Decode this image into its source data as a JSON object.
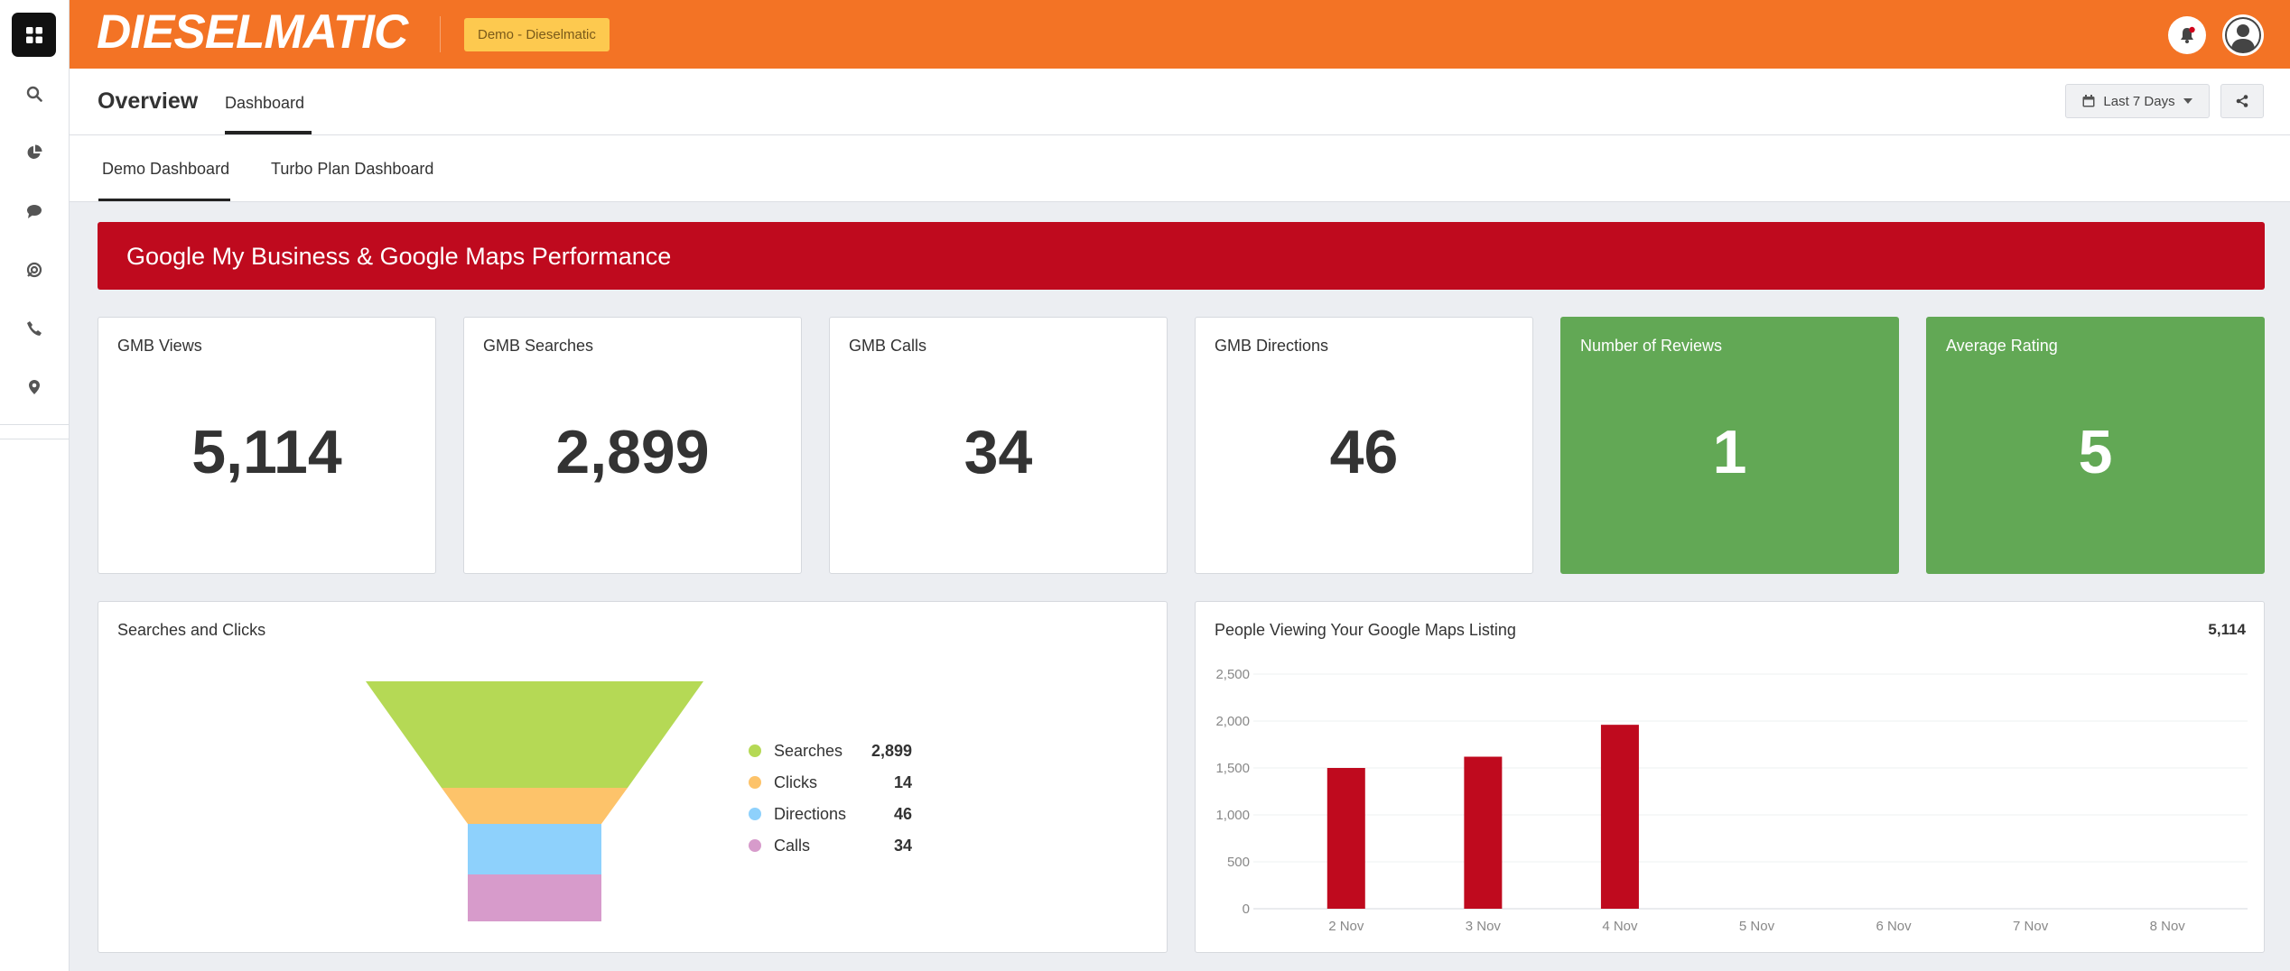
{
  "app": {
    "logo_text": "DIESELMATIC",
    "demo_badge": "Demo - Dieselmatic",
    "accent_color": "#f37325"
  },
  "sidebar": {
    "items": [
      {
        "name": "dashboard",
        "icon": "grid-icon",
        "active": true
      },
      {
        "name": "search",
        "icon": "search-icon"
      },
      {
        "name": "reports",
        "icon": "pie-chart-icon"
      },
      {
        "name": "messages",
        "icon": "chat-icon"
      },
      {
        "name": "integrations",
        "icon": "swirl-icon"
      },
      {
        "name": "calls",
        "icon": "phone-icon"
      },
      {
        "name": "locations",
        "icon": "map-pin-icon"
      }
    ]
  },
  "header": {
    "title": "Overview",
    "tab": "Dashboard",
    "date_range": "Last 7 Days"
  },
  "dashboard_tabs": [
    {
      "label": "Demo Dashboard",
      "active": true
    },
    {
      "label": "Turbo Plan Dashboard",
      "active": false
    }
  ],
  "banner": {
    "title": "Google My Business & Google Maps Performance",
    "color": "#bf0a1e"
  },
  "kpis": [
    {
      "label": "GMB Views",
      "value": "5,114"
    },
    {
      "label": "GMB Searches",
      "value": "2,899"
    },
    {
      "label": "GMB Calls",
      "value": "34"
    },
    {
      "label": "GMB Directions",
      "value": "46"
    },
    {
      "label": "Number of Reviews",
      "value": "1",
      "color": "#62a855"
    },
    {
      "label": "Average Rating",
      "value": "5",
      "color": "#62a855"
    }
  ],
  "funnel_panel": {
    "title": "Searches and Clicks"
  },
  "bar_panel": {
    "title": "People Viewing Your Google Maps Listing",
    "total": "5,114"
  },
  "chart_data": [
    {
      "type": "funnel",
      "title": "Searches and Clicks",
      "series": [
        {
          "name": "Searches",
          "value": 2899,
          "label": "2,899",
          "color": "#b5d955"
        },
        {
          "name": "Clicks",
          "value": 14,
          "label": "14",
          "color": "#fdc36a"
        },
        {
          "name": "Directions",
          "value": 46,
          "label": "46",
          "color": "#8ed1fc"
        },
        {
          "name": "Calls",
          "value": 34,
          "label": "34",
          "color": "#d79bcb"
        }
      ]
    },
    {
      "type": "bar",
      "title": "People Viewing Your Google Maps Listing",
      "categories": [
        "2 Nov",
        "3 Nov",
        "4 Nov",
        "5 Nov",
        "6 Nov",
        "7 Nov",
        "8 Nov"
      ],
      "values": [
        1500,
        1620,
        1960,
        null,
        null,
        null,
        null
      ],
      "ylim": [
        0,
        2500
      ],
      "yticks": [
        0,
        500,
        1000,
        1500,
        2000,
        2500
      ],
      "ytick_labels": [
        "0",
        "500",
        "1,000",
        "1,500",
        "2,000",
        "2,500"
      ],
      "grid": true,
      "color": "#bf0a1e"
    }
  ]
}
